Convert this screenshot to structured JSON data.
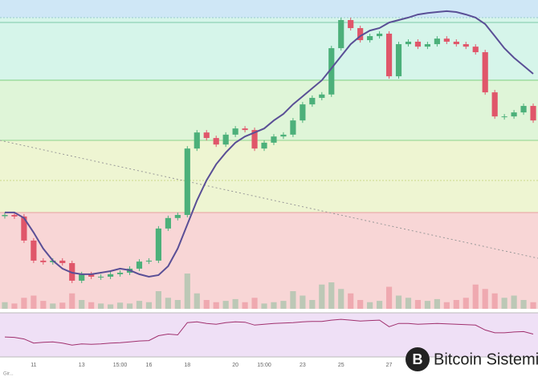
{
  "chart_data": {
    "type": "candlestick",
    "ylim": [
      0,
      100
    ],
    "categories": [
      null,
      null,
      null,
      "11",
      null,
      null,
      null,
      null,
      "13",
      null,
      null,
      null,
      "15:00",
      null,
      null,
      "16",
      null,
      null,
      null,
      "18",
      null,
      null,
      null,
      null,
      "20",
      null,
      null,
      "15:00",
      null,
      null,
      null,
      "23",
      null,
      null,
      null,
      "25",
      null,
      null,
      null,
      null,
      "27",
      null,
      null,
      null,
      null,
      null,
      null,
      null,
      null,
      null,
      null,
      null,
      null,
      null,
      null,
      null
    ],
    "open": [
      30,
      30.4,
      29.9,
      22.1,
      15.6,
      15.1,
      15.6,
      14.8,
      9.1,
      11.2,
      10.4,
      10.4,
      11.2,
      11.7,
      13,
      15.3,
      15.6,
      26,
      29.4,
      30.4,
      51.9,
      57.1,
      55.3,
      53.2,
      56.4,
      58.4,
      57.9,
      51.9,
      53.8,
      55.8,
      56.4,
      61,
      66.2,
      68.3,
      69.4,
      84.4,
      93.5,
      90.9,
      87,
      88.3,
      89.1,
      75.3,
      85.7,
      86.5,
      84.9,
      85.7,
      87.5,
      86.5,
      85.7,
      84.9,
      83.1,
      70.1,
      62.3,
      62.3,
      63.6,
      65.7
    ],
    "close": [
      30.4,
      29.9,
      22.1,
      15.6,
      15.1,
      15.6,
      14.8,
      9.1,
      11.2,
      10.4,
      10.4,
      11.2,
      11.7,
      13,
      15.3,
      15.6,
      26,
      29.4,
      30.4,
      51.9,
      57.1,
      55.3,
      53.2,
      56.4,
      58.4,
      57.9,
      51.9,
      53.8,
      55.8,
      56.4,
      61,
      66.2,
      68.3,
      69.4,
      84.4,
      93.5,
      90.9,
      87,
      88.3,
      89.1,
      75.3,
      85.7,
      86.5,
      84.9,
      85.7,
      87.5,
      86.5,
      85.7,
      84.9,
      83.1,
      70.1,
      62.3,
      62.3,
      63.6,
      65.7,
      61
    ],
    "up_color": "#4cb07a",
    "down_color": "#e0566a",
    "series": [
      {
        "color": "#5a4f96",
        "values": [
          31.2,
          31.2,
          29.4,
          24.7,
          19.5,
          15.6,
          13,
          11.7,
          11.2,
          11.2,
          11.7,
          12.2,
          13,
          12.5,
          11.2,
          10.4,
          10.9,
          13.8,
          19.5,
          27.3,
          35.1,
          41.6,
          46.8,
          50.6,
          53.8,
          55.8,
          57.1,
          58.4,
          61,
          63.1,
          66.2,
          68.8,
          71.4,
          74,
          77.9,
          81.8,
          85.7,
          88.3,
          90.1,
          90.9,
          92.7,
          93.5,
          94.3,
          95.3,
          95.8,
          96.1,
          96.4,
          96.1,
          95.3,
          94.3,
          92.2,
          88.3,
          84.4,
          81.3,
          78.7,
          76.1
        ]
      }
    ],
    "volume": {
      "ylim": [
        0,
        100
      ],
      "values": [
        15,
        12,
        25,
        30,
        18,
        12,
        14,
        35,
        20,
        15,
        12,
        10,
        14,
        12,
        18,
        15,
        40,
        25,
        20,
        80,
        35,
        20,
        15,
        18,
        22,
        15,
        25,
        12,
        15,
        18,
        40,
        30,
        20,
        55,
        60,
        45,
        35,
        20,
        15,
        18,
        50,
        30,
        25,
        20,
        18,
        22,
        15,
        20,
        25,
        55,
        45,
        35,
        25,
        30,
        20,
        15
      ]
    },
    "indicator": {
      "ylim": [
        0,
        100
      ],
      "color": "#a0306e",
      "values": [
        45,
        44,
        40,
        30,
        32,
        33,
        30,
        25,
        28,
        27,
        28,
        30,
        31,
        33,
        35,
        36,
        48,
        52,
        50,
        80,
        82,
        78,
        76,
        80,
        82,
        81,
        74,
        76,
        78,
        79,
        80,
        82,
        83,
        83,
        86,
        88,
        86,
        84,
        85,
        86,
        70,
        78,
        78,
        76,
        77,
        78,
        77,
        76,
        75,
        74,
        62,
        55,
        55,
        57,
        58,
        52
      ]
    },
    "watermark": "Bitcoin Sistemi",
    "footnote": "Gir..."
  }
}
